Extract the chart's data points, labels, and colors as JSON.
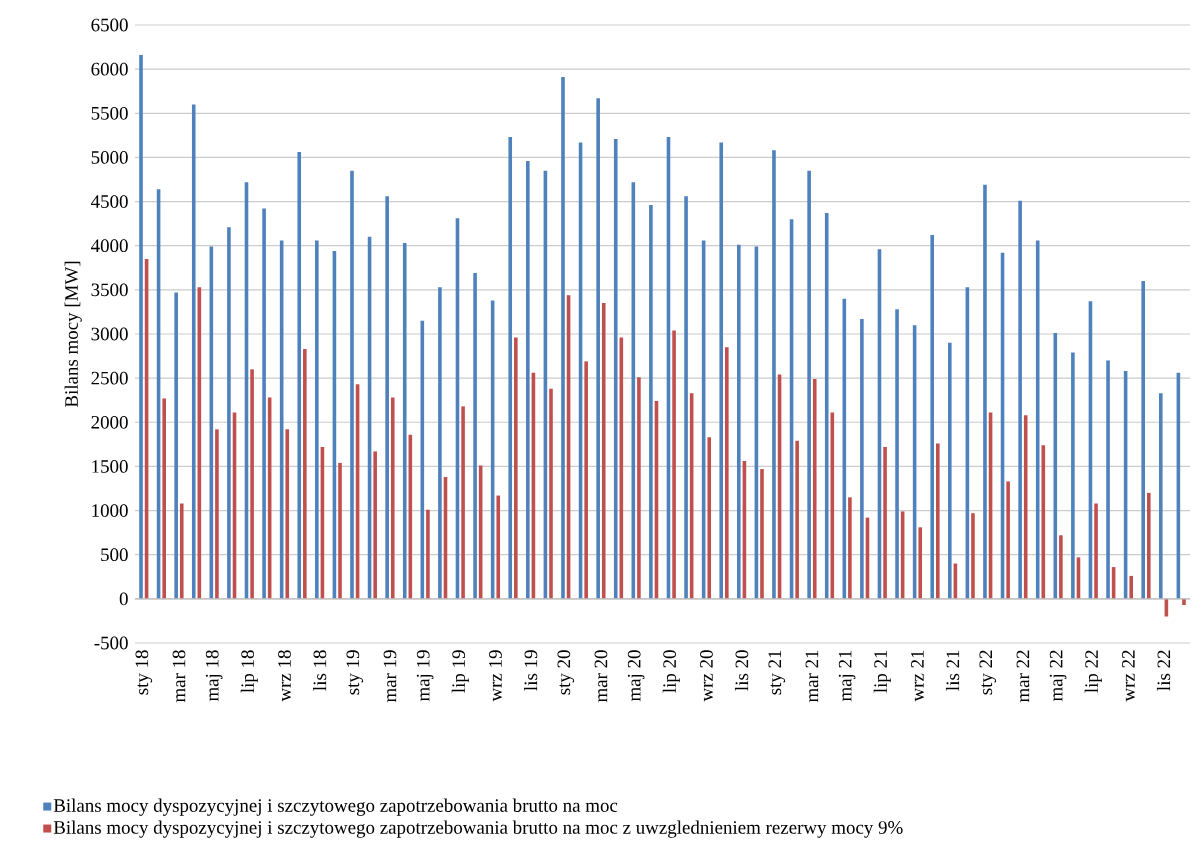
{
  "chart_data": {
    "type": "bar",
    "ylabel": "Bilans mocy [MW]",
    "categories": [
      "sty 18",
      null,
      "mar 18",
      null,
      "maj 18",
      null,
      "lip 18",
      null,
      "wrz 18",
      null,
      "lis 18",
      null,
      "sty 19",
      null,
      "mar 19",
      null,
      "maj 19",
      null,
      "lip 19",
      null,
      "wrz 19",
      null,
      "lis 19",
      null,
      "sty 20",
      null,
      "mar 20",
      null,
      "maj 20",
      null,
      "lip 20",
      null,
      "wrz 20",
      null,
      "lis 20",
      null,
      "sty 21",
      null,
      "mar 21",
      null,
      "maj 21",
      null,
      "lip 21",
      null,
      "wrz 21",
      null,
      "lis 21",
      null,
      "sty 22",
      null,
      "mar 22",
      null,
      "maj 22",
      null,
      "lip 22",
      null,
      "wrz 22",
      null,
      "lis 22",
      null
    ],
    "series": [
      {
        "name": "Bilans mocy dyspozycyjnej i szczytowego zapotrzebowania brutto na moc",
        "color": "#4f81bd",
        "values": [
          6160,
          4640,
          3470,
          5600,
          3990,
          4210,
          4720,
          4420,
          4060,
          5060,
          4060,
          3940,
          4850,
          4100,
          4560,
          4030,
          3150,
          3530,
          4310,
          3690,
          3380,
          5230,
          4960,
          4850,
          5910,
          5170,
          5670,
          5210,
          4720,
          4460,
          5230,
          4560,
          4060,
          5170,
          4010,
          3990,
          5080,
          4300,
          4850,
          4370,
          3400,
          3170,
          3960,
          3280,
          3100,
          4120,
          2900,
          3530,
          4690,
          3920,
          4510,
          4060,
          3010,
          2790,
          3370,
          2700,
          2580,
          3600,
          2330,
          2560
        ]
      },
      {
        "name": "Bilans mocy dyspozycyjnej i szczytowego zapotrzebowania brutto na moc z uwzglednieniem rezerwy mocy 9%",
        "color": "#c0504d",
        "values": [
          3850,
          2270,
          1080,
          3530,
          1920,
          2110,
          2600,
          2280,
          1920,
          2830,
          1720,
          1540,
          2430,
          1670,
          2280,
          1860,
          1010,
          1380,
          2180,
          1510,
          1170,
          2960,
          2560,
          2380,
          3440,
          2690,
          3350,
          2960,
          2510,
          2240,
          3040,
          2330,
          1830,
          2850,
          1560,
          1470,
          2540,
          1790,
          2490,
          2110,
          1150,
          920,
          1720,
          990,
          810,
          1760,
          400,
          970,
          2110,
          1330,
          2080,
          1740,
          720,
          470,
          1080,
          360,
          260,
          1200,
          -200,
          -70
        ]
      }
    ],
    "ylim": [
      -500,
      6500
    ],
    "yticks": [
      -500,
      0,
      500,
      1000,
      1500,
      2000,
      2500,
      3000,
      3500,
      4000,
      4500,
      5000,
      5500,
      6000,
      6500
    ],
    "grid": "y",
    "legend": "bottom"
  }
}
